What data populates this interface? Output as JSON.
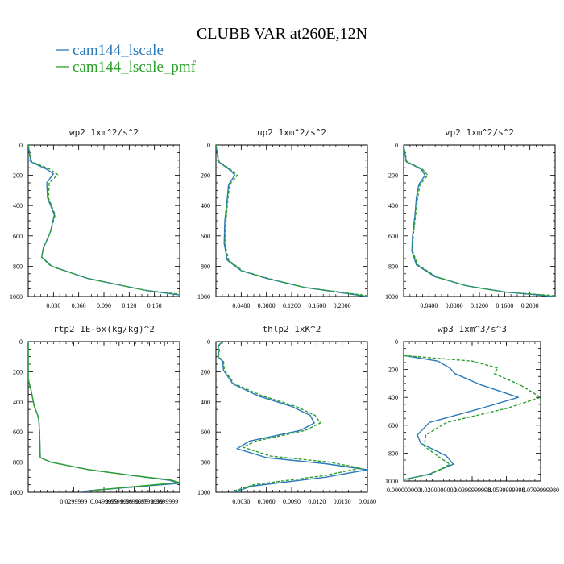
{
  "figure": {
    "title": "CLUBB VAR at260E,12N",
    "legend": [
      {
        "name": "cam144_lscale",
        "color": "#2a7ab9"
      },
      {
        "name": "cam144_lscale_pmf",
        "color": "#2ca02c"
      }
    ]
  },
  "chart_data": [
    {
      "type": "line",
      "title": "wp2   1xm^2/s^2",
      "xlim": [
        0,
        0.18
      ],
      "ylim": [
        0,
        1000
      ],
      "x_ticks": [
        0.03,
        0.06,
        0.09,
        0.12,
        0.15
      ],
      "x_tick_labels": [
        "0.030",
        "0.060",
        "0.090",
        "0.120",
        "0.150"
      ],
      "y_ticks": [
        0,
        200,
        400,
        600,
        800,
        1000
      ],
      "y_tick_labels": [
        "0",
        "200",
        "400",
        "600",
        "800",
        "1000"
      ],
      "series": [
        {
          "name": "cam144_lscale",
          "color": "#2a7ab9",
          "dashed": false,
          "x": [
            0.0,
            0.003,
            0.022,
            0.03,
            0.022,
            0.023,
            0.031,
            0.026,
            0.018,
            0.016,
            0.028,
            0.07,
            0.14,
            0.18
          ],
          "y": [
            0,
            110,
            160,
            190,
            250,
            350,
            460,
            580,
            680,
            740,
            800,
            880,
            960,
            990
          ]
        },
        {
          "name": "cam144_lscale_pmf",
          "color": "#2ca02c",
          "dashed": true,
          "x": [
            0.0,
            0.004,
            0.026,
            0.035,
            0.025,
            0.024,
            0.032,
            0.026,
            0.018,
            0.016,
            0.027,
            0.07,
            0.14,
            0.18
          ],
          "y": [
            0,
            110,
            160,
            195,
            250,
            350,
            460,
            580,
            680,
            740,
            800,
            880,
            960,
            985
          ]
        }
      ]
    },
    {
      "type": "line",
      "title": "up2   1xm^2/s^2",
      "xlim": [
        0,
        0.24
      ],
      "ylim": [
        0,
        1000
      ],
      "x_ticks": [
        0.04,
        0.08,
        0.12,
        0.16,
        0.2
      ],
      "x_tick_labels": [
        "0.0400",
        "0.0800",
        "0.1200",
        "0.1600",
        "0.2000"
      ],
      "y_ticks": [
        0,
        200,
        400,
        600,
        800,
        1000
      ],
      "y_tick_labels": [
        "0",
        "200",
        "400",
        "600",
        "800",
        "1000"
      ],
      "series": [
        {
          "name": "cam144_lscale",
          "color": "#2a7ab9",
          "dashed": false,
          "x": [
            0.0,
            0.004,
            0.024,
            0.03,
            0.02,
            0.018,
            0.014,
            0.013,
            0.018,
            0.04,
            0.08,
            0.14,
            0.24
          ],
          "y": [
            0,
            110,
            170,
            200,
            260,
            350,
            500,
            650,
            760,
            830,
            880,
            940,
            1000
          ]
        },
        {
          "name": "cam144_lscale_pmf",
          "color": "#2ca02c",
          "dashed": true,
          "x": [
            0.0,
            0.005,
            0.026,
            0.034,
            0.022,
            0.019,
            0.016,
            0.014,
            0.02,
            0.042,
            0.082,
            0.14,
            0.24
          ],
          "y": [
            0,
            110,
            170,
            200,
            260,
            350,
            500,
            650,
            760,
            830,
            880,
            940,
            995
          ]
        }
      ]
    },
    {
      "type": "line",
      "title": "vp2   1xm^2/s^2",
      "xlim": [
        0,
        0.24
      ],
      "ylim": [
        0,
        1000
      ],
      "x_ticks": [
        0.04,
        0.08,
        0.12,
        0.16,
        0.2
      ],
      "x_tick_labels": [
        "0.0400",
        "0.0800",
        "0.1200",
        "0.1600",
        "0.2000"
      ],
      "y_ticks": [
        0,
        200,
        400,
        600,
        800,
        1000
      ],
      "y_tick_labels": [
        "0",
        "200",
        "400",
        "600",
        "800",
        "1000"
      ],
      "series": [
        {
          "name": "cam144_lscale",
          "color": "#2a7ab9",
          "dashed": false,
          "x": [
            0.0,
            0.004,
            0.028,
            0.034,
            0.024,
            0.02,
            0.018,
            0.014,
            0.013,
            0.02,
            0.05,
            0.1,
            0.16,
            0.24
          ],
          "y": [
            0,
            110,
            160,
            200,
            260,
            350,
            460,
            600,
            700,
            790,
            870,
            930,
            970,
            1000
          ]
        },
        {
          "name": "cam144_lscale_pmf",
          "color": "#2ca02c",
          "dashed": true,
          "x": [
            0.0,
            0.005,
            0.03,
            0.038,
            0.026,
            0.022,
            0.019,
            0.015,
            0.014,
            0.022,
            0.052,
            0.1,
            0.16,
            0.24
          ],
          "y": [
            0,
            110,
            160,
            200,
            260,
            350,
            460,
            600,
            700,
            790,
            870,
            930,
            970,
            995
          ]
        }
      ]
    },
    {
      "type": "line",
      "title": "rtp2   1E-6x(kg/kg)^2",
      "xlim": [
        0,
        0.1
      ],
      "ylim": [
        0,
        1000
      ],
      "x_ticks": [
        0.0299999,
        0.0499999,
        0.0599999,
        0.0699999,
        0.0799999,
        0.0899999
      ],
      "x_tick_labels": [
        "0.0299999",
        "0.0499999",
        "0.0599999",
        "0.0699999",
        "0.0799999",
        "0.0899999"
      ],
      "y_ticks": [
        0,
        200,
        400,
        600,
        800,
        1000
      ],
      "y_tick_labels": [
        "0",
        "200",
        "400",
        "600",
        "800",
        "1000"
      ],
      "series": [
        {
          "name": "cam144_lscale",
          "color": "#2a7ab9",
          "dashed": false,
          "x": [
            0.0,
            0.0,
            0.002,
            0.004,
            0.006,
            0.007,
            0.0075,
            0.008,
            0.015,
            0.04,
            0.07,
            0.093,
            0.1,
            0.04,
            0.035
          ],
          "y": [
            0,
            250,
            330,
            430,
            480,
            520,
            600,
            770,
            800,
            850,
            890,
            920,
            940,
            990,
            1000
          ]
        },
        {
          "name": "cam144_lscale_pmf",
          "color": "#2ca02c",
          "dashed": false,
          "x": [
            0.0,
            0.0,
            0.002,
            0.004,
            0.006,
            0.007,
            0.0075,
            0.008,
            0.015,
            0.04,
            0.07,
            0.094,
            0.1,
            0.045,
            0.04
          ],
          "y": [
            0,
            250,
            330,
            430,
            480,
            520,
            600,
            770,
            800,
            850,
            890,
            918,
            935,
            985,
            995
          ]
        }
      ]
    },
    {
      "type": "line",
      "title": "thlp2   1xK^2",
      "xlim": [
        0,
        0.018
      ],
      "ylim": [
        0,
        1000
      ],
      "x_ticks": [
        0.003,
        0.006,
        0.009,
        0.012,
        0.015,
        0.018
      ],
      "x_tick_labels": [
        "0.0030",
        "0.0060",
        "0.0090",
        "0.0120",
        "0.0150",
        "0.0180"
      ],
      "y_ticks": [
        0,
        200,
        400,
        600,
        800,
        1000
      ],
      "y_tick_labels": [
        "0",
        "200",
        "400",
        "600",
        "800",
        "1000"
      ],
      "series": [
        {
          "name": "cam144_lscale",
          "color": "#2a7ab9",
          "dashed": false,
          "x": [
            0.0008,
            0.0002,
            0.0004,
            0.0002,
            0.0008,
            0.0009,
            0.002,
            0.005,
            0.009,
            0.0112,
            0.0117,
            0.01,
            0.004,
            0.0025,
            0.006,
            0.013,
            0.018,
            0.013,
            0.0042,
            0.0022
          ],
          "y": [
            0,
            30,
            60,
            100,
            130,
            190,
            280,
            360,
            430,
            490,
            540,
            590,
            660,
            710,
            770,
            810,
            850,
            900,
            960,
            1000
          ]
        },
        {
          "name": "cam144_lscale_pmf",
          "color": "#2ca02c",
          "dashed": true,
          "x": [
            0.0009,
            0.0003,
            0.0004,
            0.0003,
            0.0009,
            0.001,
            0.0022,
            0.0055,
            0.0095,
            0.0118,
            0.0124,
            0.0106,
            0.0048,
            0.0032,
            0.0065,
            0.0135,
            0.0172,
            0.0128,
            0.0045,
            0.0023
          ],
          "y": [
            0,
            30,
            60,
            100,
            130,
            190,
            280,
            360,
            430,
            490,
            540,
            590,
            660,
            700,
            760,
            800,
            840,
            890,
            950,
            990
          ]
        }
      ]
    },
    {
      "type": "line",
      "title": "wp3   1xm^3/s^3",
      "xlim": [
        0,
        0.08
      ],
      "ylim": [
        0,
        1000
      ],
      "x_ticks": [
        0,
        0.02,
        0.04,
        0.06,
        0.08
      ],
      "x_tick_labels": [
        "0.000000000",
        "0.0200000000",
        "0.0399999998",
        "0.0599999998",
        "0.0799999980"
      ],
      "y_ticks": [
        0,
        200,
        400,
        600,
        800,
        1000
      ],
      "y_tick_labels": [
        "0",
        "200",
        "400",
        "600",
        "800",
        "1000"
      ],
      "series": [
        {
          "name": "cam144_lscale",
          "color": "#2a7ab9",
          "dashed": false,
          "x": [
            0.0,
            0.02,
            0.027,
            0.03,
            0.045,
            0.067,
            0.045,
            0.015,
            0.008,
            0.01,
            0.025,
            0.029,
            0.015,
            0.0
          ],
          "y": [
            100,
            140,
            190,
            230,
            310,
            400,
            480,
            580,
            670,
            730,
            820,
            880,
            950,
            990
          ]
        },
        {
          "name": "cam144_lscale_pmf",
          "color": "#2ca02c",
          "dashed": true,
          "x": [
            0.0,
            0.04,
            0.055,
            0.053,
            0.068,
            0.08,
            0.06,
            0.025,
            0.013,
            0.012,
            0.022,
            0.027,
            0.016,
            0.0
          ],
          "y": [
            100,
            140,
            190,
            230,
            310,
            400,
            480,
            580,
            670,
            750,
            840,
            880,
            950,
            990
          ]
        }
      ]
    }
  ]
}
